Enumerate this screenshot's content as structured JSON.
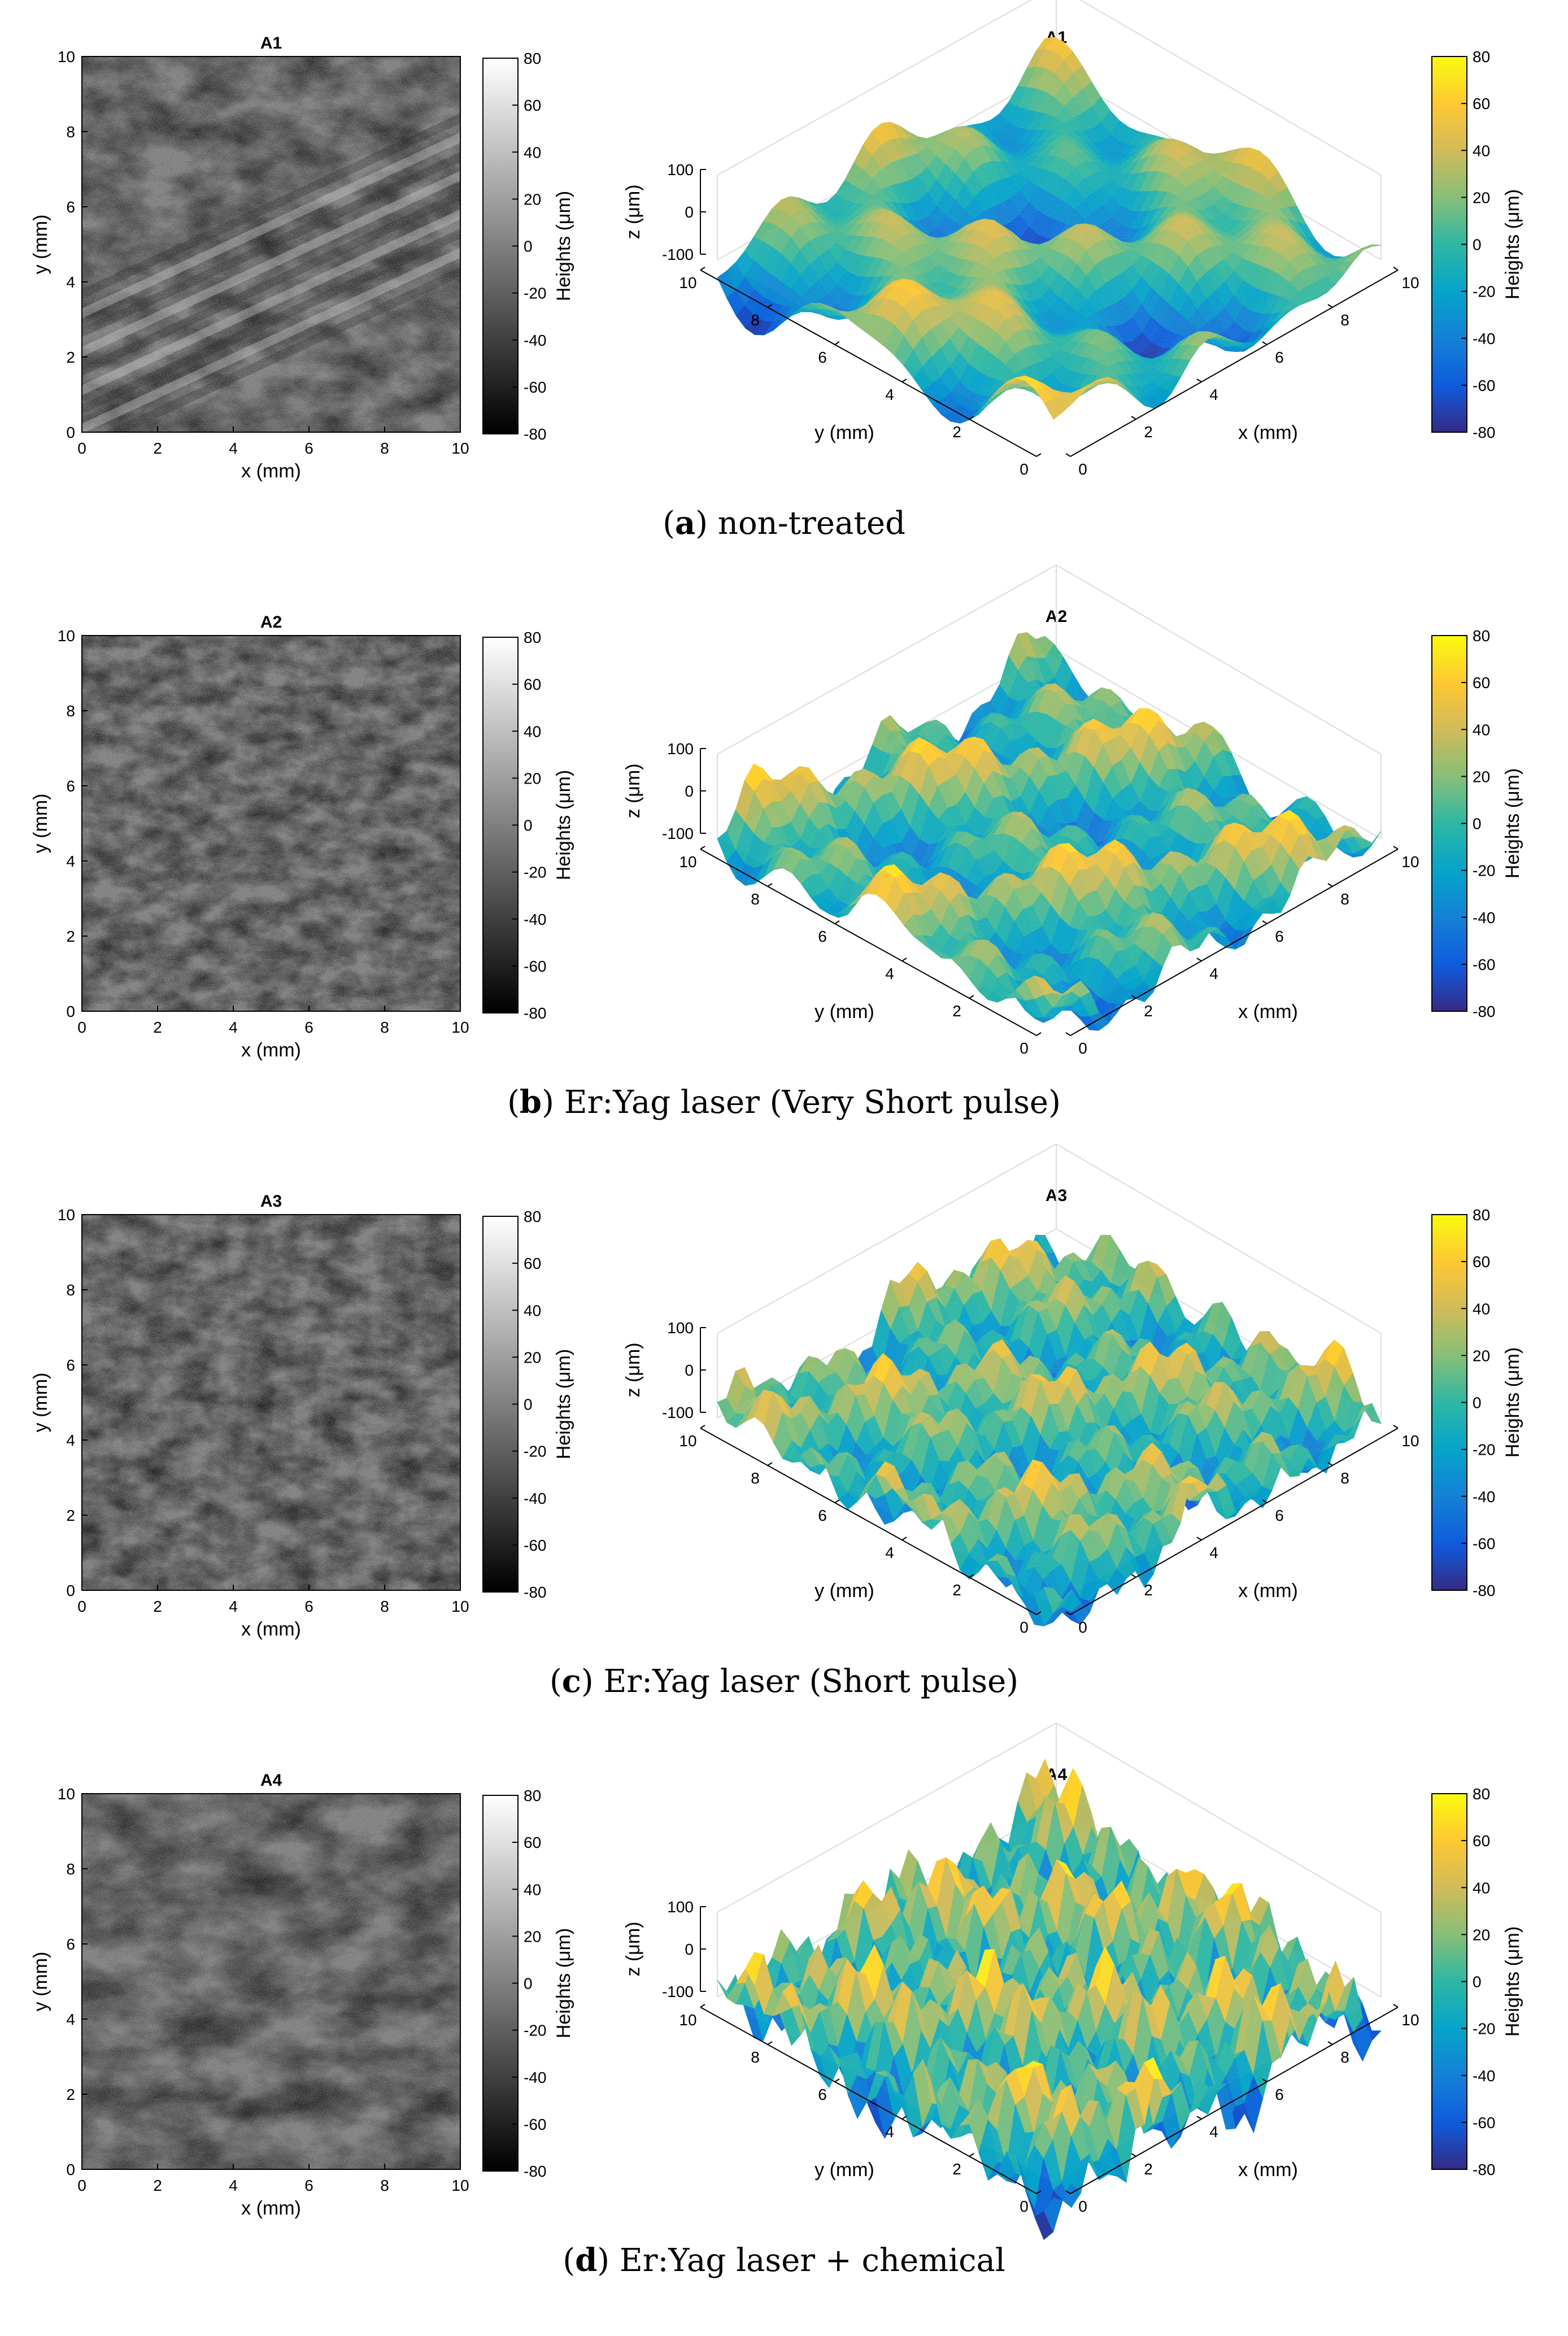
{
  "figure": {
    "panels": [
      {
        "caption_letter": "a",
        "caption_text": "non-treated",
        "map_title": "A1",
        "surface_title": "A1"
      },
      {
        "caption_letter": "b",
        "caption_text": "Er:Yag laser (Very Short pulse)",
        "map_title": "A2",
        "surface_title": "A2"
      },
      {
        "caption_letter": "c",
        "caption_text": "Er:Yag laser (Short pulse)",
        "map_title": "A3",
        "surface_title": "A3"
      },
      {
        "caption_letter": "d",
        "caption_text": "Er:Yag laser + chemical",
        "map_title": "A4",
        "surface_title": "A4"
      }
    ],
    "map_xlabel": "x (mm)",
    "map_ylabel": "y (mm)",
    "map_ticks": [
      "0",
      "2",
      "4",
      "6",
      "8",
      "10"
    ],
    "surface_xlabel": "x (mm)",
    "surface_ylabel": "y (mm)",
    "surface_zlabel": "z (μm)",
    "surface_x_ticks": [
      "0",
      "2",
      "4",
      "6",
      "8",
      "10"
    ],
    "surface_y_ticks": [
      "0",
      "2",
      "4",
      "6",
      "8",
      "10"
    ],
    "surface_z_ticks": [
      "100",
      "0",
      "-100"
    ],
    "colorbar_label": "Heights (μm)",
    "colorbar_ticks": [
      "80",
      "60",
      "40",
      "20",
      "0",
      "-20",
      "-40",
      "-60",
      "-80"
    ],
    "colormap_gray": [
      "#000000",
      "#ffffff"
    ],
    "colormap_parula": [
      "#352a87",
      "#0f5cdd",
      "#1481d6",
      "#06a4ca",
      "#2eb7a4",
      "#87bf77",
      "#d1bb59",
      "#fec832",
      "#f9fb0e"
    ]
  },
  "chart_data": [
    {
      "type": "heatmap",
      "title": "A1",
      "xlabel": "x (mm)",
      "ylabel": "y (mm)",
      "xlim": [
        0,
        10
      ],
      "ylim": [
        0,
        10
      ],
      "colorbar": {
        "label": "Heights (μm)",
        "range": [
          -80,
          80
        ],
        "colormap": "gray"
      }
    },
    {
      "type": "surface3d",
      "title": "A1",
      "xlabel": "x (mm)",
      "ylabel": "y (mm)",
      "zlabel": "z (μm)",
      "xlim": [
        0,
        10
      ],
      "ylim": [
        0,
        10
      ],
      "zlim": [
        -100,
        100
      ],
      "colorbar": {
        "label": "Heights (μm)",
        "range": [
          -80,
          80
        ],
        "colormap": "parula"
      }
    },
    {
      "type": "heatmap",
      "title": "A2",
      "xlabel": "x (mm)",
      "ylabel": "y (mm)",
      "xlim": [
        0,
        10
      ],
      "ylim": [
        0,
        10
      ],
      "colorbar": {
        "label": "Heights (μm)",
        "range": [
          -80,
          80
        ],
        "colormap": "gray"
      }
    },
    {
      "type": "surface3d",
      "title": "A2",
      "xlabel": "x (mm)",
      "ylabel": "y (mm)",
      "zlabel": "z (μm)",
      "xlim": [
        0,
        10
      ],
      "ylim": [
        0,
        10
      ],
      "zlim": [
        -100,
        100
      ],
      "colorbar": {
        "label": "Heights (μm)",
        "range": [
          -80,
          80
        ],
        "colormap": "parula"
      }
    },
    {
      "type": "heatmap",
      "title": "A3",
      "xlabel": "x (mm)",
      "ylabel": "y (mm)",
      "xlim": [
        0,
        10
      ],
      "ylim": [
        0,
        10
      ],
      "colorbar": {
        "label": "Heights (μm)",
        "range": [
          -80,
          80
        ],
        "colormap": "gray"
      }
    },
    {
      "type": "surface3d",
      "title": "A3",
      "xlabel": "x (mm)",
      "ylabel": "y (mm)",
      "zlabel": "z (μm)",
      "xlim": [
        0,
        10
      ],
      "ylim": [
        0,
        10
      ],
      "zlim": [
        -100,
        100
      ],
      "colorbar": {
        "label": "Heights (μm)",
        "range": [
          -80,
          80
        ],
        "colormap": "parula"
      }
    },
    {
      "type": "heatmap",
      "title": "A4",
      "xlabel": "x (mm)",
      "ylabel": "y (mm)",
      "xlim": [
        0,
        10
      ],
      "ylim": [
        0,
        10
      ],
      "colorbar": {
        "label": "Heights (μm)",
        "range": [
          -80,
          80
        ],
        "colormap": "gray"
      }
    },
    {
      "type": "surface3d",
      "title": "A4",
      "xlabel": "x (mm)",
      "ylabel": "y (mm)",
      "zlabel": "z (μm)",
      "xlim": [
        0,
        10
      ],
      "ylim": [
        0,
        10
      ],
      "zlim": [
        -100,
        100
      ],
      "colorbar": {
        "label": "Heights (μm)",
        "range": [
          -80,
          80
        ],
        "colormap": "parula"
      }
    }
  ]
}
